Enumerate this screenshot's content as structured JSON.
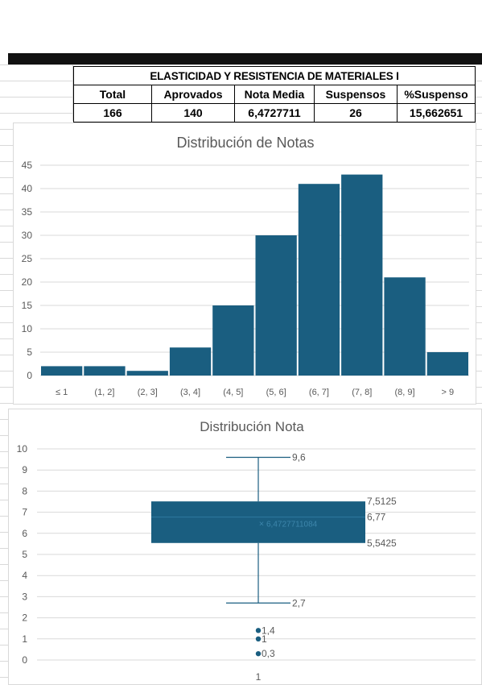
{
  "sheet": {
    "table_title": "ELASTICIDAD Y RESISTENCIA DE MATERIALES I",
    "headers": [
      "Total",
      "Aprovados",
      "Nota Media",
      "Suspensos",
      "%Suspenso"
    ],
    "values": [
      "166",
      "140",
      "6,4727711",
      "26",
      "15,662651"
    ]
  },
  "colors": {
    "bar": "#1a5e80",
    "axis_text": "#595959",
    "grid": "#d9d9d9"
  },
  "chart_data": [
    {
      "type": "bar",
      "title": "Distribución de Notas",
      "categories": [
        "≤ 1",
        "(1, 2]",
        "(2, 3]",
        "(3, 4]",
        "(4, 5]",
        "(5, 6]",
        "(6, 7]",
        "(7, 8]",
        "(8, 9]",
        "> 9"
      ],
      "values": [
        2,
        2,
        1,
        6,
        15,
        30,
        41,
        43,
        21,
        5
      ],
      "ylim": [
        0,
        45
      ],
      "yticks": [
        "0",
        "5",
        "10",
        "15",
        "20",
        "25",
        "30",
        "35",
        "40",
        "45"
      ],
      "grid": true
    },
    {
      "type": "box",
      "title": "Distribución Nota",
      "categories": [
        "1"
      ],
      "ylim": [
        0,
        10
      ],
      "yticks": [
        "0",
        "1",
        "2",
        "3",
        "4",
        "5",
        "6",
        "7",
        "8",
        "9",
        "10"
      ],
      "whisker_max": 9.6,
      "q3": 7.5125,
      "median": 6.77,
      "mean": 6.4727711,
      "q1": 5.5425,
      "whisker_min": 2.7,
      "outliers": [
        1.4,
        1,
        0.3
      ],
      "labels": {
        "whisker_max": "9,6",
        "q3": "7,5125",
        "median": "6,77",
        "mean": "6,4727711084",
        "q1": "5,5425",
        "whisker_min": "2,7",
        "outliers": [
          "1,4",
          "1",
          "0,3"
        ]
      },
      "grid": true
    }
  ]
}
